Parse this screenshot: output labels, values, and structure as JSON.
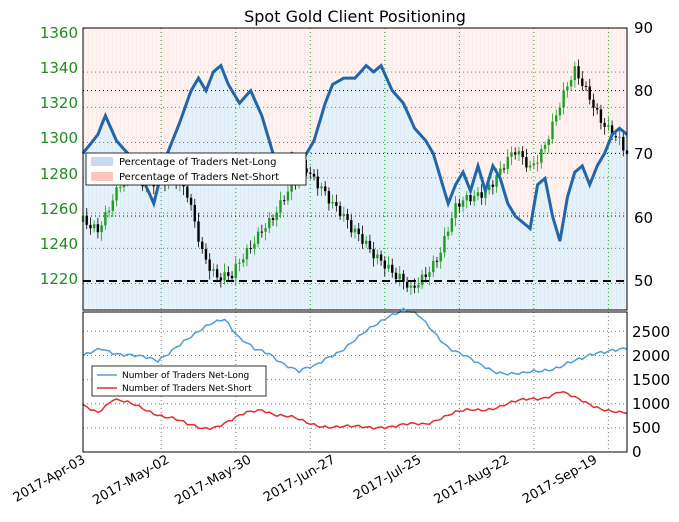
{
  "chart_data": [
    {
      "type": "candlestick",
      "title": "Spot Gold Client Positioning",
      "y_left_ticks": [
        "1220",
        "1240",
        "1260",
        "1280",
        "1300",
        "1320",
        "1340",
        "1360"
      ],
      "y_right_ticks": [
        "50",
        "60",
        "70",
        "80",
        "90"
      ],
      "ylim_left": [
        1205,
        1365
      ],
      "ylim_right": [
        45,
        90
      ],
      "grid": true,
      "legend_position": "upper-left",
      "legend": [
        "Percentage of Traders Net-Long",
        "Percentage of Traders Net-Short"
      ],
      "reference_line_right": 50,
      "percent_net_long_anchors": [
        [
          0,
          70
        ],
        [
          4,
          73
        ],
        [
          6,
          76
        ],
        [
          9,
          72
        ],
        [
          12,
          70
        ],
        [
          16,
          66
        ],
        [
          19,
          62
        ],
        [
          22,
          69
        ],
        [
          26,
          75
        ],
        [
          29,
          80
        ],
        [
          31,
          82
        ],
        [
          33,
          80
        ],
        [
          35,
          83
        ],
        [
          37,
          84
        ],
        [
          39,
          81
        ],
        [
          42,
          78
        ],
        [
          45,
          80
        ],
        [
          48,
          76
        ],
        [
          51,
          70
        ],
        [
          53,
          68
        ],
        [
          56,
          70
        ],
        [
          59,
          69
        ],
        [
          62,
          72
        ],
        [
          65,
          78
        ],
        [
          67,
          81
        ],
        [
          70,
          82
        ],
        [
          73,
          82
        ],
        [
          76,
          84
        ],
        [
          78,
          83
        ],
        [
          80,
          84
        ],
        [
          83,
          80
        ],
        [
          86,
          78
        ],
        [
          89,
          74
        ],
        [
          92,
          72
        ],
        [
          94,
          70
        ],
        [
          96,
          66
        ],
        [
          98,
          62
        ],
        [
          100,
          65
        ],
        [
          102,
          67
        ],
        [
          104,
          64
        ],
        [
          106,
          68
        ],
        [
          108,
          64
        ],
        [
          110,
          68
        ],
        [
          112,
          66
        ],
        [
          114,
          62
        ],
        [
          116,
          60
        ],
        [
          118,
          59
        ],
        [
          120,
          58
        ],
        [
          122,
          65
        ],
        [
          124,
          66
        ],
        [
          126,
          60
        ],
        [
          128,
          56
        ],
        [
          130,
          63
        ],
        [
          132,
          67
        ],
        [
          134,
          68
        ],
        [
          136,
          65
        ],
        [
          138,
          68
        ],
        [
          140,
          70
        ],
        [
          142,
          73
        ],
        [
          144,
          74
        ],
        [
          146,
          73
        ]
      ],
      "price_anchors": [
        [
          0,
          1255
        ],
        [
          4,
          1254
        ],
        [
          8,
          1268
        ],
        [
          12,
          1280
        ],
        [
          16,
          1278
        ],
        [
          20,
          1282
        ],
        [
          24,
          1278
        ],
        [
          28,
          1268
        ],
        [
          32,
          1240
        ],
        [
          36,
          1226
        ],
        [
          40,
          1222
        ],
        [
          44,
          1236
        ],
        [
          48,
          1254
        ],
        [
          52,
          1262
        ],
        [
          56,
          1272
        ],
        [
          60,
          1285
        ],
        [
          64,
          1278
        ],
        [
          68,
          1262
        ],
        [
          72,
          1248
        ],
        [
          76,
          1244
        ],
        [
          80,
          1236
        ],
        [
          84,
          1222
        ],
        [
          88,
          1214
        ],
        [
          92,
          1228
        ],
        [
          96,
          1240
        ],
        [
          100,
          1260
        ],
        [
          104,
          1268
        ],
        [
          108,
          1276
        ],
        [
          112,
          1284
        ],
        [
          116,
          1292
        ],
        [
          120,
          1286
        ],
        [
          124,
          1302
        ],
        [
          128,
          1320
        ],
        [
          132,
          1338
        ],
        [
          136,
          1328
        ],
        [
          140,
          1312
        ],
        [
          144,
          1298
        ],
        [
          146,
          1290
        ]
      ]
    },
    {
      "type": "line",
      "x_ticks": [
        "2017-Apr-03",
        "2017-May-02",
        "2017-May-30",
        "2017-Jun-27",
        "2017-Jul-25",
        "2017-Aug-22",
        "2017-Sep-19"
      ],
      "y_ticks": [
        "0",
        "500",
        "1000",
        "1500",
        "2000",
        "2500"
      ],
      "ylim": [
        0,
        2900
      ],
      "grid": true,
      "legend_position": "center-left",
      "series": [
        {
          "name": "Number of Traders Net-Long",
          "color": "#4c9de0",
          "anchors": [
            [
              0,
              1950
            ],
            [
              5,
              2150
            ],
            [
              10,
              2050
            ],
            [
              15,
              1950
            ],
            [
              20,
              1900
            ],
            [
              25,
              2200
            ],
            [
              30,
              2400
            ],
            [
              35,
              2700
            ],
            [
              38,
              2800
            ],
            [
              42,
              2350
            ],
            [
              46,
              2100
            ],
            [
              50,
              2050
            ],
            [
              55,
              1800
            ],
            [
              58,
              1650
            ],
            [
              62,
              1750
            ],
            [
              66,
              2000
            ],
            [
              70,
              2150
            ],
            [
              74,
              2350
            ],
            [
              78,
              2600
            ],
            [
              82,
              2850
            ],
            [
              86,
              2950
            ],
            [
              90,
              2800
            ],
            [
              94,
              2500
            ],
            [
              98,
              2200
            ],
            [
              102,
              2000
            ],
            [
              106,
              1800
            ],
            [
              110,
              1700
            ],
            [
              114,
              1650
            ],
            [
              118,
              1600
            ],
            [
              122,
              1650
            ],
            [
              126,
              1750
            ],
            [
              130,
              1850
            ],
            [
              134,
              1900
            ],
            [
              138,
              2050
            ],
            [
              142,
              2150
            ],
            [
              146,
              2150
            ]
          ]
        },
        {
          "name": "Number of Traders Net-Short",
          "color": "#e0302b",
          "anchors": [
            [
              0,
              950
            ],
            [
              4,
              850
            ],
            [
              8,
              1100
            ],
            [
              12,
              1000
            ],
            [
              16,
              900
            ],
            [
              20,
              800
            ],
            [
              24,
              700
            ],
            [
              28,
              550
            ],
            [
              32,
              500
            ],
            [
              36,
              550
            ],
            [
              40,
              650
            ],
            [
              44,
              800
            ],
            [
              48,
              900
            ],
            [
              52,
              780
            ],
            [
              56,
              700
            ],
            [
              60,
              600
            ],
            [
              64,
              560
            ],
            [
              68,
              520
            ],
            [
              72,
              500
            ],
            [
              76,
              520
            ],
            [
              80,
              540
            ],
            [
              84,
              520
            ],
            [
              88,
              560
            ],
            [
              92,
              600
            ],
            [
              96,
              720
            ],
            [
              100,
              800
            ],
            [
              104,
              860
            ],
            [
              108,
              900
            ],
            [
              112,
              950
            ],
            [
              116,
              1020
            ],
            [
              120,
              1100
            ],
            [
              124,
              1150
            ],
            [
              128,
              1250
            ],
            [
              132,
              1100
            ],
            [
              136,
              1000
            ],
            [
              140,
              900
            ],
            [
              144,
              800
            ],
            [
              146,
              780
            ]
          ]
        }
      ]
    }
  ]
}
